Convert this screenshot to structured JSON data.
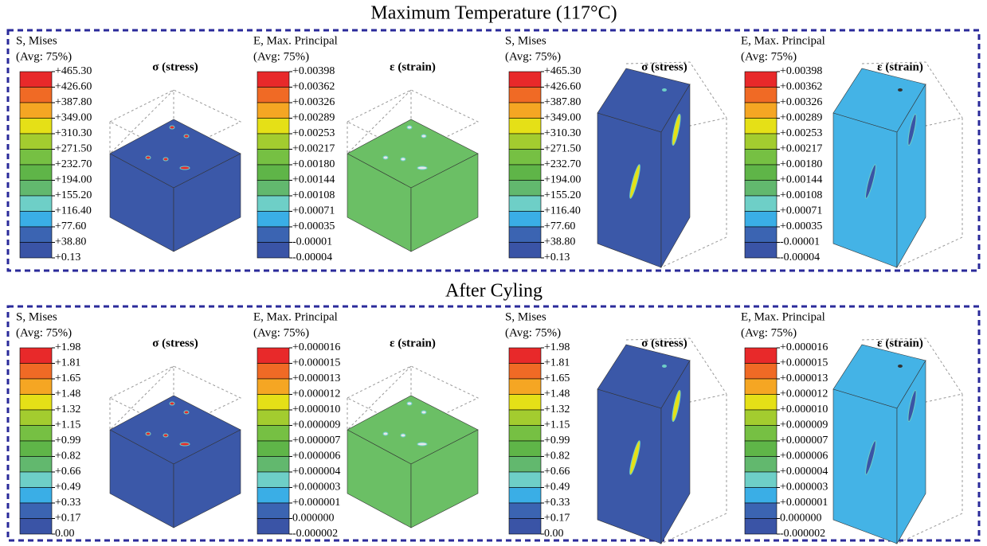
{
  "sections": [
    {
      "title": "Maximum Temperature (117°C)",
      "plots": [
        {
          "legend_title": [
            "S, Mises",
            "(Avg: 75%)"
          ],
          "label": "σ (stress)",
          "legend_labels": [
            "+465.30",
            "+426.60",
            "+387.80",
            "+349.00",
            "+310.30",
            "+271.50",
            "+232.70",
            "+194.00",
            "+155.20",
            "+116.40",
            "+77.60",
            "+38.80",
            "+0.13"
          ]
        },
        {
          "legend_title": [
            "E, Max. Principal",
            "(Avg: 75%)"
          ],
          "label": "ε (strain)",
          "legend_labels": [
            "+0.00398",
            "+0.00362",
            "+0.00326",
            "+0.00289",
            "+0.00253",
            "+0.00217",
            "+0.00180",
            "+0.00144",
            "+0.00108",
            "+0.00071",
            "+0.00035",
            "-0.00001",
            "-0.00004"
          ]
        },
        {
          "legend_title": [
            "S, Mises",
            "(Avg: 75%)"
          ],
          "label": "σ (stress)",
          "legend_labels": [
            "+465.30",
            "+426.60",
            "+387.80",
            "+349.00",
            "+310.30",
            "+271.50",
            "+232.70",
            "+194.00",
            "+155.20",
            "+116.40",
            "+77.60",
            "+38.80",
            "+0.13"
          ]
        },
        {
          "legend_title": [
            "E, Max. Principal",
            "(Avg: 75%)"
          ],
          "label": "ε (strain)",
          "legend_labels": [
            "+0.00398",
            "+0.00362",
            "+0.00326",
            "+0.00289",
            "+0.00253",
            "+0.00217",
            "+0.00180",
            "+0.00144",
            "+0.00108",
            "+0.00071",
            "+0.00035",
            "-0.00001",
            "-0.00004"
          ]
        }
      ]
    },
    {
      "title": "After Cyling",
      "plots": [
        {
          "legend_title": [
            "S, Mises",
            "(Avg: 75%)"
          ],
          "label": "σ (stress)",
          "legend_labels": [
            "+1.98",
            "+1.81",
            "+1.65",
            "+1.48",
            "+1.32",
            "+1.15",
            "+0.99",
            "+0.82",
            "+0.66",
            "+0.49",
            "+0.33",
            "+0.17",
            "0.00"
          ]
        },
        {
          "legend_title": [
            "E, Max. Principal",
            "(Avg: 75%)"
          ],
          "label": "ε (strain)",
          "legend_labels": [
            "+0.000016",
            "+0.000015",
            "+0.000013",
            "+0.000012",
            "+0.000010",
            "+0.000009",
            "+0.000007",
            "+0.000006",
            "+0.000004",
            "+0.000003",
            "+0.000001",
            "0.000000",
            "-0.000002"
          ]
        },
        {
          "legend_title": [
            "S, Mises",
            "(Avg: 75%)"
          ],
          "label": "σ (stress)",
          "legend_labels": [
            "+1.98",
            "+1.81",
            "+1.65",
            "+1.48",
            "+1.32",
            "+1.15",
            "+0.99",
            "+0.82",
            "+0.66",
            "+0.49",
            "+0.33",
            "+0.17",
            "0.00"
          ]
        },
        {
          "legend_title": [
            "E, Max. Principal",
            "(Avg: 75%)"
          ],
          "label": "ε (strain)",
          "legend_labels": [
            "+0.000016",
            "+0.000015",
            "+0.000013",
            "+0.000012",
            "+0.000010",
            "+0.000009",
            "+0.000007",
            "+0.000006",
            "+0.000004",
            "+0.000003",
            "+0.000001",
            "0.000000",
            "-0.000002"
          ]
        }
      ]
    }
  ]
}
